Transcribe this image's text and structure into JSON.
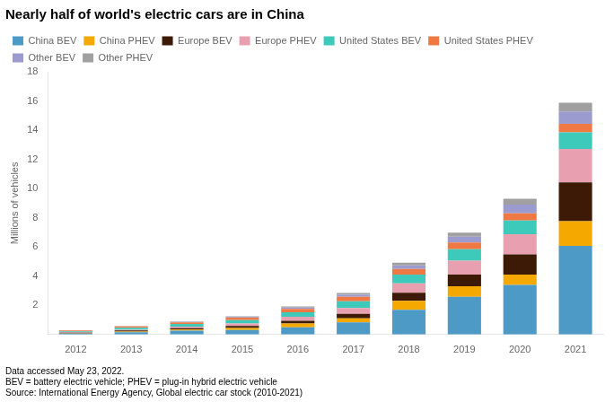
{
  "chart_data": {
    "type": "bar",
    "stacked": true,
    "title": "Nearly half of world's electric cars are in China",
    "ylabel": "Millions of vehicles",
    "categories": [
      2012,
      2013,
      2014,
      2015,
      2016,
      2017,
      2018,
      2019,
      2020,
      2021
    ],
    "series": [
      {
        "name": "China BEV",
        "color": "#4E9AC7",
        "values": [
          0.07,
          0.16,
          0.26,
          0.31,
          0.5,
          0.83,
          1.69,
          2.58,
          3.4,
          6.07
        ]
      },
      {
        "name": "China PHEV",
        "color": "#F5A800",
        "values": [
          0.01,
          0.05,
          0.08,
          0.14,
          0.26,
          0.28,
          0.62,
          0.73,
          0.71,
          1.69
        ]
      },
      {
        "name": "Europe BEV",
        "color": "#3D1A05",
        "values": [
          0.05,
          0.07,
          0.1,
          0.14,
          0.18,
          0.3,
          0.55,
          0.8,
          1.38,
          2.67
        ]
      },
      {
        "name": "Europe PHEV",
        "color": "#E8A0B0",
        "values": [
          0.02,
          0.05,
          0.1,
          0.17,
          0.27,
          0.41,
          0.65,
          0.95,
          1.39,
          2.29
        ]
      },
      {
        "name": "United States BEV",
        "color": "#3ECABB",
        "values": [
          0.07,
          0.13,
          0.18,
          0.22,
          0.31,
          0.45,
          0.6,
          0.78,
          0.93,
          1.13
        ]
      },
      {
        "name": "United States PHEV",
        "color": "#F07843",
        "values": [
          0.06,
          0.09,
          0.12,
          0.17,
          0.24,
          0.31,
          0.38,
          0.46,
          0.49,
          0.58
        ]
      },
      {
        "name": "Other BEV",
        "color": "#9B9BCF",
        "values": [
          0.01,
          0.02,
          0.03,
          0.05,
          0.08,
          0.15,
          0.25,
          0.4,
          0.6,
          0.85
        ]
      },
      {
        "name": "Other PHEV",
        "color": "#A0A0A0",
        "values": [
          0.01,
          0.02,
          0.03,
          0.05,
          0.08,
          0.12,
          0.18,
          0.28,
          0.4,
          0.6
        ]
      }
    ],
    "ylim": [
      0,
      18
    ],
    "yticks": [
      2,
      4,
      6,
      8,
      10,
      12,
      14,
      16,
      18
    ],
    "grid": false,
    "legend": "top",
    "footnote": "Data accessed May 23, 2022.\nBEV = battery electric vehicle; PHEV = plug-in hybrid electric vehicle\nSource: International Energy Agency, Global electric car stock (2010-2021)"
  }
}
